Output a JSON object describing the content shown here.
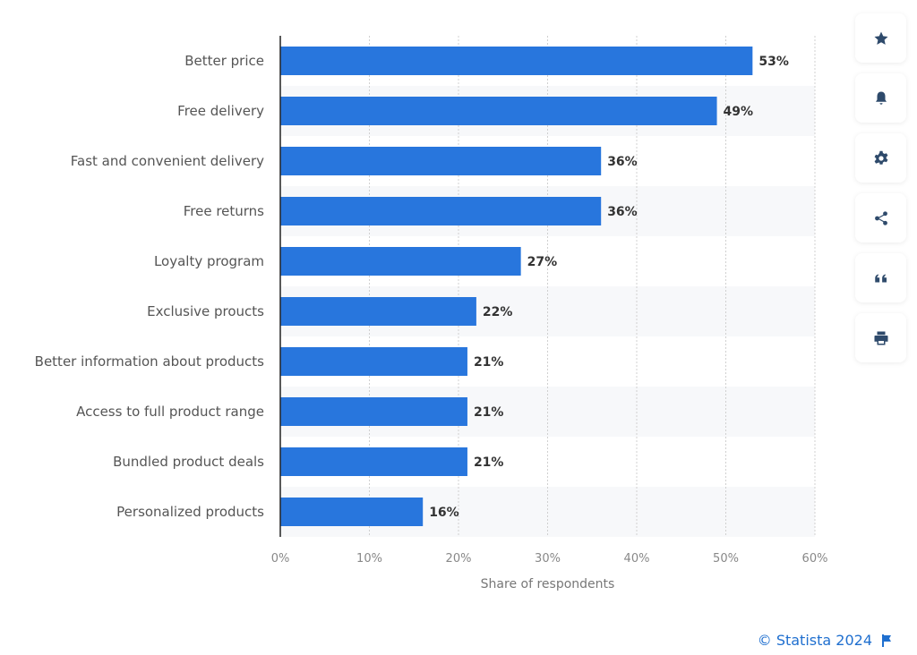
{
  "chart_data": {
    "type": "bar",
    "orientation": "horizontal",
    "categories": [
      "Better price",
      "Free delivery",
      "Fast and convenient delivery",
      "Free returns",
      "Loyalty program",
      "Exclusive proucts",
      "Better information about products",
      "Access to full product range",
      "Bundled product deals",
      "Personalized products"
    ],
    "values": [
      53,
      49,
      36,
      36,
      27,
      22,
      21,
      21,
      21,
      16
    ],
    "value_labels": [
      "53%",
      "49%",
      "36%",
      "36%",
      "27%",
      "22%",
      "21%",
      "21%",
      "21%",
      "16%"
    ],
    "title": "",
    "xlabel": "Share of respondents",
    "ylabel": "",
    "xlim": [
      0,
      60
    ],
    "x_ticks": [
      0,
      10,
      20,
      30,
      40,
      50,
      60
    ],
    "x_tick_labels": [
      "0%",
      "10%",
      "20%",
      "30%",
      "40%",
      "50%",
      "60%"
    ],
    "grid": true,
    "legend": "none",
    "bar_color": "#2876dd"
  },
  "sidebar": {
    "buttons": [
      {
        "name": "favorite",
        "icon": "star-icon"
      },
      {
        "name": "notification",
        "icon": "bell-icon"
      },
      {
        "name": "settings",
        "icon": "gear-icon"
      },
      {
        "name": "share",
        "icon": "share-icon"
      },
      {
        "name": "cite",
        "icon": "quote-icon"
      },
      {
        "name": "print",
        "icon": "printer-icon"
      }
    ]
  },
  "footer": {
    "copyright": "© Statista 2024",
    "flag_icon": "flag-icon",
    "link_color": "#1f6fcf"
  }
}
